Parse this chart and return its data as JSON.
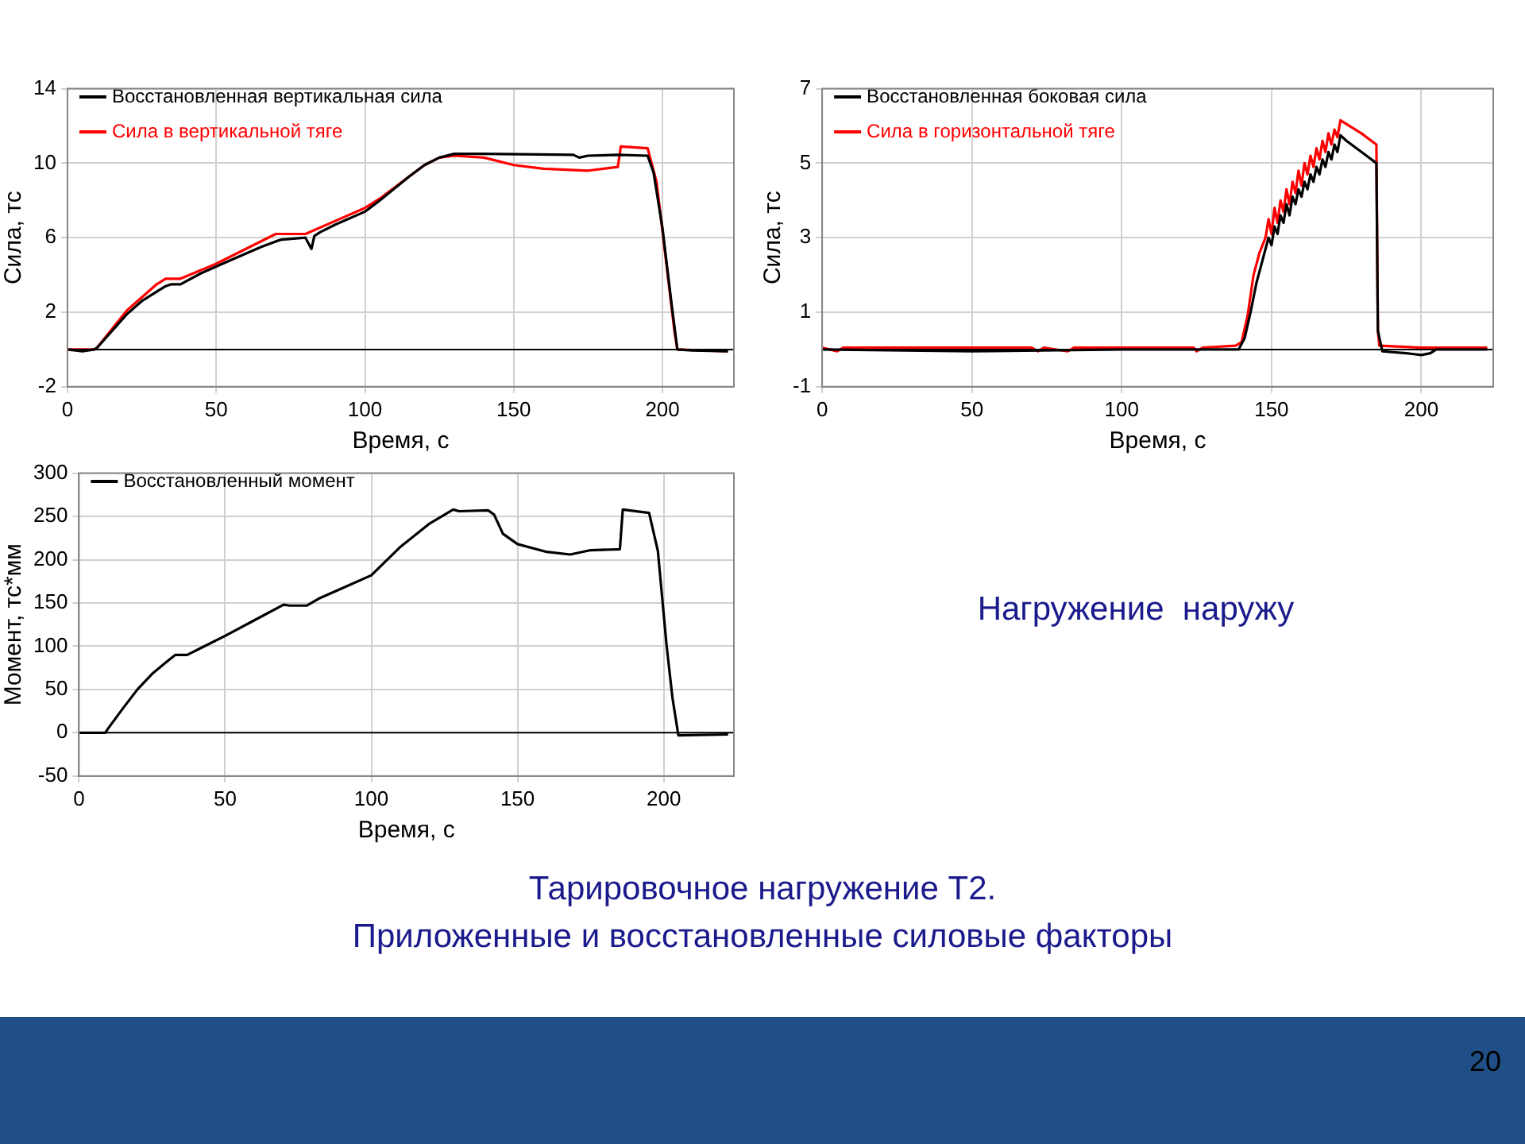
{
  "chart_data": [
    {
      "type": "line",
      "xlabel": "Время, с",
      "ylabel": "Сила, тс",
      "xlim": [
        0,
        224
      ],
      "xticks": [
        0,
        50,
        100,
        150,
        200
      ],
      "ylim": [
        -2,
        14
      ],
      "yticks": [
        -2,
        2,
        6,
        10,
        14
      ],
      "grid": true,
      "legend": "top left",
      "ref_lines": [
        {
          "axis": "y",
          "value": 0,
          "color": "#000000"
        }
      ],
      "series": [
        {
          "name": "Восстановленная вертикальная сила",
          "color": "#000000",
          "x": [
            0,
            5,
            9,
            10,
            15,
            20,
            25,
            30,
            33,
            35,
            38,
            45,
            55,
            65,
            70,
            72,
            80,
            82,
            83,
            85,
            90,
            100,
            105,
            115,
            120,
            125,
            130,
            140,
            170,
            172,
            175,
            185,
            195,
            197,
            200,
            203,
            205,
            210,
            222
          ],
          "values": [
            0,
            -0.1,
            0,
            0.1,
            1.0,
            1.9,
            2.6,
            3.1,
            3.4,
            3.5,
            3.5,
            4.1,
            4.8,
            5.5,
            5.8,
            5.9,
            6.0,
            5.4,
            6.1,
            6.3,
            6.7,
            7.4,
            8.0,
            9.3,
            9.9,
            10.3,
            10.5,
            10.5,
            10.45,
            10.3,
            10.4,
            10.45,
            10.4,
            9.5,
            6.5,
            2.5,
            0,
            -0.05,
            -0.1
          ]
        },
        {
          "name": "Сила в вертикальной тяге",
          "color": "#ff0000",
          "x": [
            0,
            9,
            10,
            15,
            20,
            25,
            30,
            33,
            38,
            50,
            60,
            70,
            80,
            90,
            100,
            105,
            120,
            125,
            130,
            140,
            150,
            160,
            175,
            185,
            186,
            195,
            198,
            201,
            204,
            205,
            222
          ],
          "values": [
            0,
            0,
            0.1,
            1.1,
            2.1,
            2.8,
            3.5,
            3.8,
            3.8,
            4.6,
            5.4,
            6.2,
            6.2,
            6.9,
            7.6,
            8.1,
            9.9,
            10.3,
            10.4,
            10.3,
            9.9,
            9.7,
            9.6,
            9.8,
            10.9,
            10.8,
            9.0,
            5.0,
            1.0,
            0,
            -0.1
          ]
        }
      ]
    },
    {
      "type": "line",
      "xlabel": "Время, с",
      "ylabel": "Сила, тс",
      "xlim": [
        0,
        224
      ],
      "xticks": [
        0,
        50,
        100,
        150,
        200
      ],
      "ylim": [
        -1,
        7
      ],
      "yticks": [
        -1,
        1,
        3,
        5,
        7
      ],
      "grid": true,
      "legend": "top left",
      "ref_lines": [
        {
          "axis": "y",
          "value": 0,
          "color": "#000000"
        }
      ],
      "series": [
        {
          "name": "Восстановленная боковая сила",
          "color": "#000000",
          "x": [
            0,
            50,
            100,
            139,
            141,
            143,
            145,
            147,
            148,
            149,
            150,
            151,
            152,
            153,
            154,
            155,
            156,
            157,
            158,
            159,
            160,
            161,
            162,
            163,
            164,
            165,
            166,
            167,
            168,
            169,
            170,
            171,
            172,
            173,
            175,
            180,
            185,
            185.5,
            187,
            195,
            200,
            203,
            205,
            222
          ],
          "values": [
            0,
            -0.05,
            0,
            0,
            0.3,
            1.0,
            1.8,
            2.4,
            2.7,
            3.0,
            2.8,
            3.3,
            3.1,
            3.6,
            3.4,
            3.9,
            3.6,
            4.1,
            3.9,
            4.3,
            4.1,
            4.5,
            4.3,
            4.7,
            4.5,
            4.9,
            4.7,
            5.1,
            4.9,
            5.3,
            5.1,
            5.5,
            5.3,
            5.75,
            5.6,
            5.3,
            5.0,
            0.5,
            -0.05,
            -0.1,
            -0.15,
            -0.1,
            0,
            0
          ]
        },
        {
          "name": "Сила в горизонтальной тяге",
          "color": "#ff0000",
          "x": [
            0,
            5,
            7,
            30,
            70,
            72,
            74,
            82,
            84,
            124,
            125,
            127,
            138,
            140,
            142,
            144,
            146,
            148,
            149,
            150,
            151,
            152,
            153,
            154,
            155,
            156,
            157,
            158,
            159,
            160,
            161,
            162,
            163,
            164,
            165,
            166,
            167,
            168,
            169,
            170,
            171,
            172,
            173,
            175,
            180,
            185,
            185.5,
            186,
            200,
            222
          ],
          "values": [
            0.05,
            -0.05,
            0.05,
            0.05,
            0.05,
            -0.05,
            0.05,
            -0.05,
            0.05,
            0.05,
            -0.05,
            0.05,
            0.1,
            0.2,
            0.9,
            2.0,
            2.6,
            3.0,
            3.5,
            3.1,
            3.8,
            3.4,
            4.0,
            3.7,
            4.3,
            3.9,
            4.5,
            4.2,
            4.8,
            4.4,
            5.0,
            4.7,
            5.2,
            4.9,
            5.4,
            5.1,
            5.6,
            5.3,
            5.8,
            5.5,
            5.9,
            5.7,
            6.15,
            6.05,
            5.8,
            5.5,
            0.5,
            0.1,
            0.05,
            0.05
          ]
        }
      ]
    },
    {
      "type": "line",
      "xlabel": "Время, с",
      "ylabel": "Момент, тс*мм",
      "xlim": [
        0,
        224
      ],
      "xticks": [
        0,
        50,
        100,
        150,
        200
      ],
      "ylim": [
        -50,
        300
      ],
      "yticks": [
        -50,
        0,
        50,
        100,
        150,
        200,
        250,
        300
      ],
      "grid": true,
      "legend": "top left",
      "ref_lines": [
        {
          "axis": "y",
          "value": 0,
          "color": "#000000"
        }
      ],
      "series": [
        {
          "name": "Восстановленный момент",
          "color": "#000000",
          "x": [
            0,
            9,
            10,
            15,
            20,
            25,
            30,
            33,
            37,
            50,
            60,
            70,
            72,
            78,
            82,
            90,
            100,
            110,
            120,
            128,
            130,
            140,
            142,
            145,
            150,
            160,
            168,
            175,
            185,
            186,
            195,
            198,
            201,
            203,
            205,
            222
          ],
          "values": [
            0,
            0,
            5,
            28,
            50,
            68,
            82,
            90,
            90,
            112,
            130,
            148,
            147,
            147,
            155,
            167,
            182,
            215,
            242,
            258,
            256,
            257,
            252,
            230,
            218,
            209,
            206,
            211,
            212,
            258,
            254,
            210,
            100,
            40,
            -3,
            -2
          ]
        }
      ]
    },
    {
      "type": "other",
      "annotations": [
        "Нагружение  наружу",
        "Тарировочное нагружение Т2.",
        "Приложенные и восстановленные силовые факторы",
        "20"
      ]
    }
  ]
}
